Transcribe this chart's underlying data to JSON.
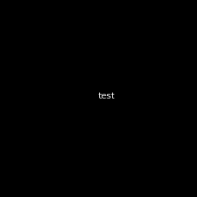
{
  "background": "#000000",
  "bond_color": "#ffffff",
  "N_color": "#0000ff",
  "O_color": "#ff0000",
  "HO_color": "#ff0000",
  "bond_width": 1.5,
  "font_size": 9,
  "fig_size": [
    2.5,
    2.5
  ],
  "dpi": 100
}
